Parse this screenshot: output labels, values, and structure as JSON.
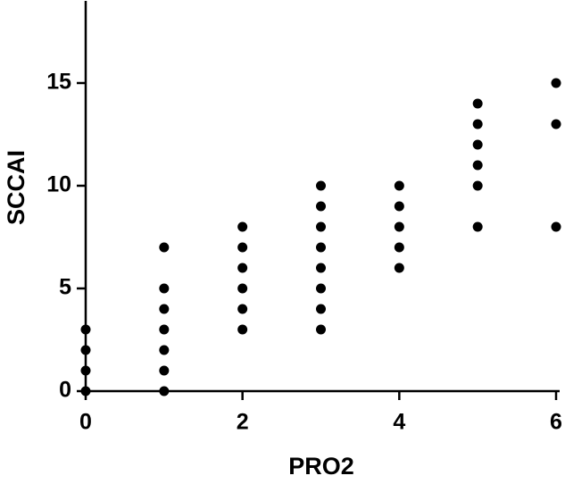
{
  "chart_data": {
    "type": "scatter",
    "x_label": "PRO2",
    "y_label": "SCCAI",
    "series": [
      {
        "color": "#000000",
        "x": [
          0,
          0,
          0,
          0,
          1,
          1,
          1,
          1,
          1,
          1,
          1,
          2,
          2,
          2,
          2,
          2,
          2,
          3,
          3,
          3,
          3,
          3,
          3,
          3,
          3,
          4,
          4,
          4,
          4,
          4,
          5,
          5,
          5,
          5,
          5,
          5,
          6,
          6,
          6
        ],
        "values": [
          0,
          1,
          2,
          3,
          0,
          1,
          2,
          3,
          4,
          5,
          7,
          3,
          4,
          5,
          6,
          7,
          8,
          3,
          4,
          5,
          6,
          7,
          8,
          9,
          10,
          6,
          7,
          8,
          9,
          10,
          8,
          10,
          11,
          12,
          13,
          14,
          8,
          13,
          15
        ]
      }
    ],
    "xlim": [
      0,
      6
    ],
    "xticks": [
      0,
      2,
      4,
      6
    ],
    "ylim": [
      0,
      19
    ],
    "yticks": [
      0,
      5,
      10,
      15
    ]
  }
}
